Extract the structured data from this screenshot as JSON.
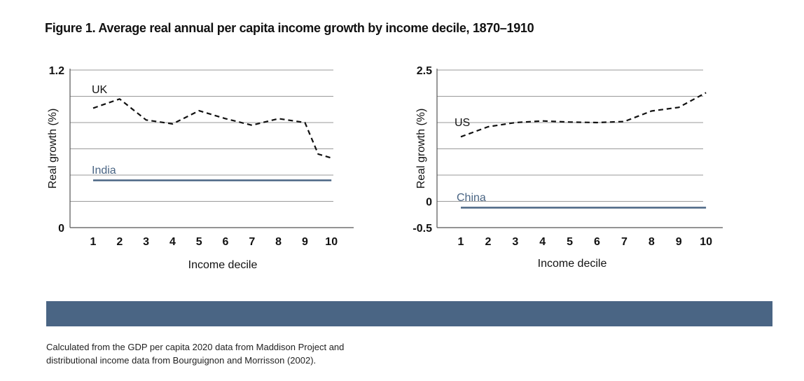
{
  "title": "Figure 1. Average real annual per capita income growth by income decile, 1870–1910",
  "source": {
    "line1": "Calculated from the GDP per capita 2020 data from Maddison Project and",
    "line2": "distributional income data from Bourguignon and Morrisson (2002)."
  },
  "colors": {
    "dashed_series": "#111111",
    "solid_series": "#4a6584",
    "grid": "#9a9a9a",
    "band": "#4a6584"
  },
  "chart_data": [
    {
      "type": "line",
      "xlabel": "Income decile",
      "ylabel": "Real growth (%)",
      "ylim": [
        0,
        1.2
      ],
      "ytick_labels": [
        "0",
        "1.2"
      ],
      "x": [
        1,
        2,
        3,
        4,
        5,
        6,
        7,
        8,
        9,
        9.5,
        10
      ],
      "xtick_labels": [
        "1",
        "2",
        "3",
        "4",
        "5",
        "6",
        "7",
        "8",
        "9",
        "10"
      ],
      "grid": true,
      "series": [
        {
          "name": "UK",
          "style": "dashed",
          "values": [
            0.91,
            0.98,
            0.82,
            0.79,
            0.89,
            0.83,
            0.78,
            0.83,
            0.8,
            0.56,
            0.53
          ]
        },
        {
          "name": "India",
          "style": "solid",
          "values": [
            0.36,
            0.36,
            0.36,
            0.36,
            0.36,
            0.36,
            0.36,
            0.36,
            0.36,
            0.36,
            0.36
          ]
        }
      ]
    },
    {
      "type": "line",
      "xlabel": "Income decile",
      "ylabel": "Real growth (%)",
      "ylim": [
        -0.5,
        2.5
      ],
      "ytick_labels": [
        "-0.5",
        "0",
        "2.5"
      ],
      "ytick_values": [
        -0.5,
        0,
        2.5
      ],
      "x": [
        1,
        2,
        3,
        4,
        5,
        6,
        7,
        8,
        9,
        10
      ],
      "xtick_labels": [
        "1",
        "2",
        "3",
        "4",
        "5",
        "6",
        "7",
        "8",
        "9",
        "10"
      ],
      "grid": true,
      "series": [
        {
          "name": "US",
          "style": "dashed",
          "values": [
            1.23,
            1.42,
            1.5,
            1.53,
            1.51,
            1.5,
            1.52,
            1.72,
            1.79,
            2.07
          ]
        },
        {
          "name": "China",
          "style": "solid",
          "values": [
            -0.12,
            -0.12,
            -0.12,
            -0.12,
            -0.12,
            -0.12,
            -0.12,
            -0.12,
            -0.12,
            -0.12
          ]
        }
      ]
    }
  ]
}
